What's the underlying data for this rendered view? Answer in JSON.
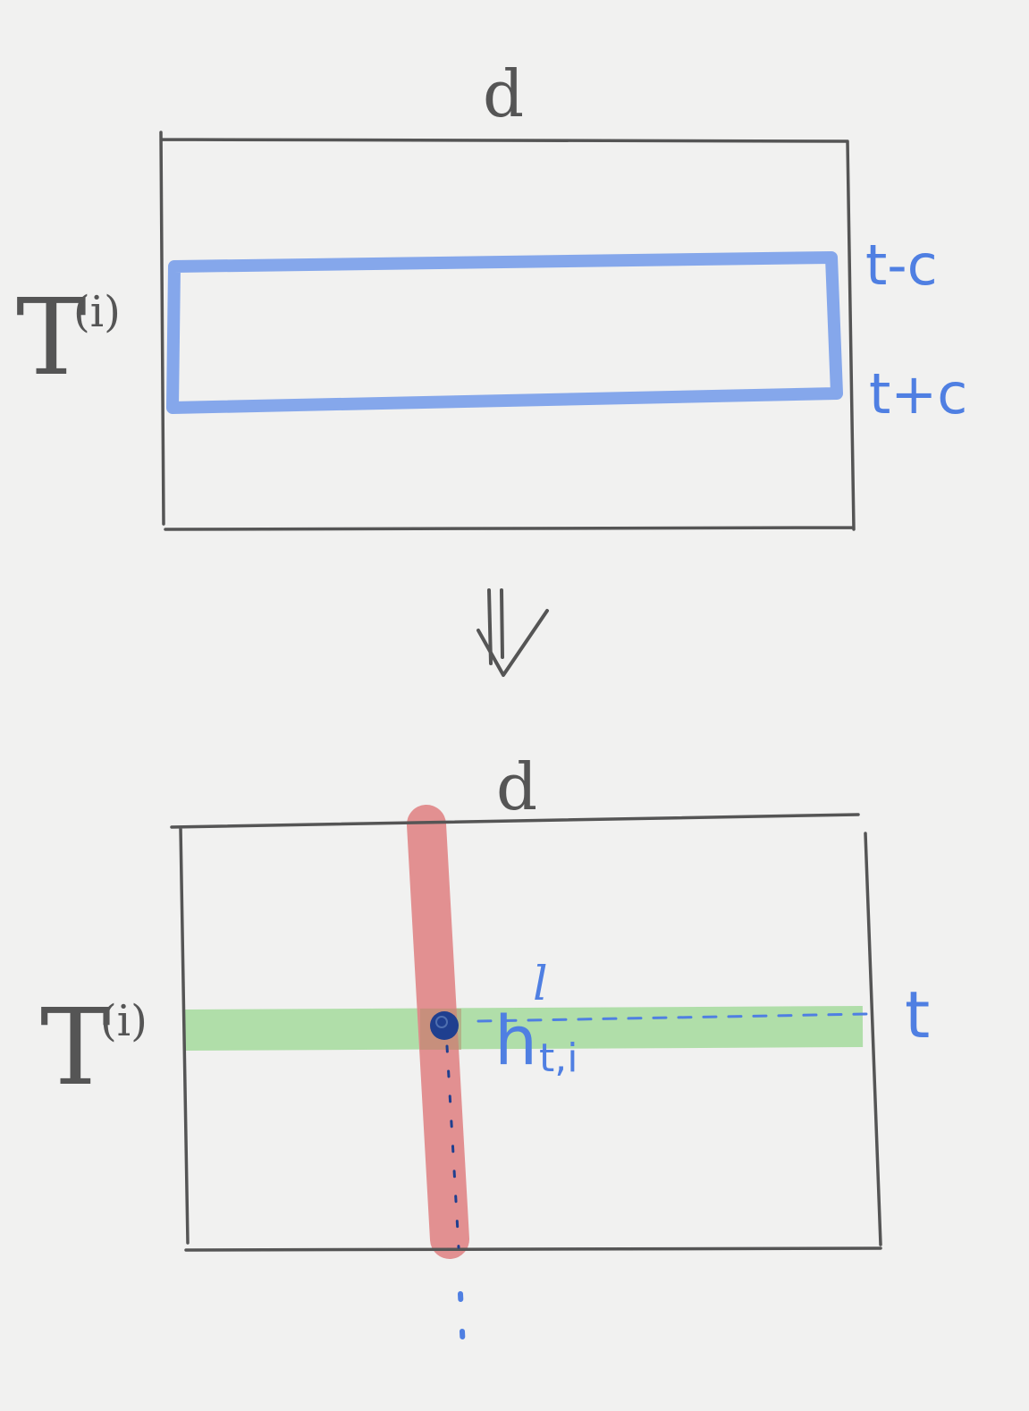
{
  "colors": {
    "paper": "#f1f1f0",
    "ink_gray": "#555555",
    "ink_blue": "#4f7fe2",
    "ink_navy": "#1f3f8f",
    "highlight_blue": "#7ea2ea",
    "highlight_red": "#e08586",
    "highlight_green": "#a9dca1"
  },
  "top_matrix": {
    "width_label": "d",
    "matrix_label": "T",
    "matrix_superscript": "(i)",
    "window_top_label": "t-c",
    "window_bottom_label": "t+c"
  },
  "arrow": {
    "icon": "double-down-arrow-icon"
  },
  "bottom_matrix": {
    "width_label": "d",
    "matrix_label": "T",
    "matrix_superscript": "(i)",
    "row_label": "t",
    "cell_label": "h",
    "cell_superscript": "l",
    "cell_subscript": "t,i"
  }
}
